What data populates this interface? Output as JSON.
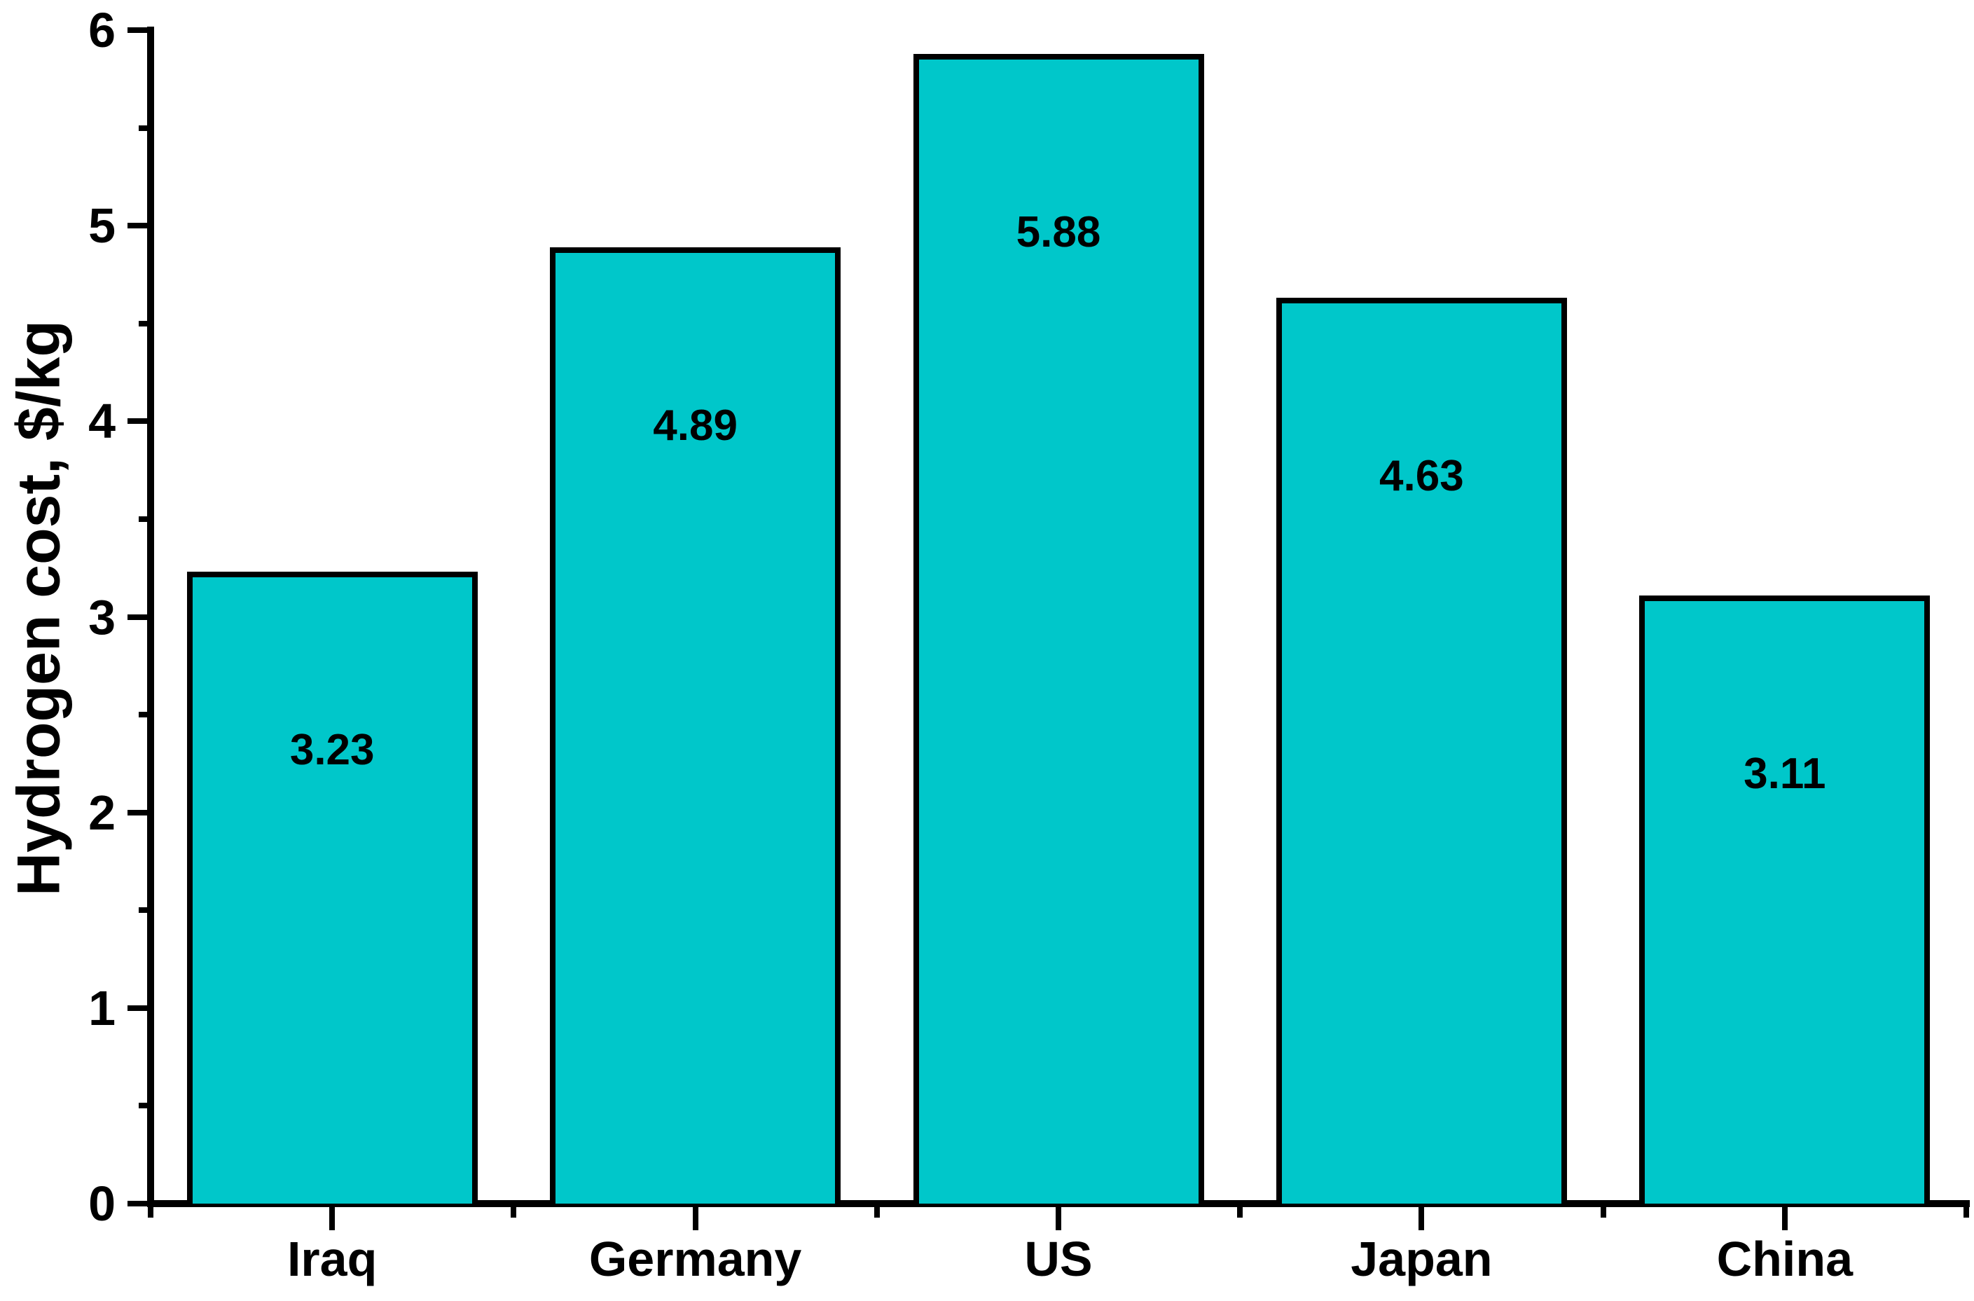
{
  "chart_data": {
    "type": "bar",
    "categories": [
      "Iraq",
      "Germany",
      "US",
      "Japan",
      "China"
    ],
    "values": [
      3.23,
      4.89,
      5.88,
      4.63,
      3.11
    ],
    "value_labels": [
      "3.23",
      "4.89",
      "5.88",
      "4.63",
      "3.11"
    ],
    "title": "",
    "xlabel": "",
    "ylabel": "Hydrogen cost, $/kg",
    "ylim": [
      0,
      6
    ],
    "y_major_ticks": [
      0,
      1,
      2,
      3,
      4,
      5,
      6
    ],
    "y_major_tick_labels": [
      "0",
      "1",
      "2",
      "3",
      "4",
      "5",
      "6"
    ],
    "y_minor_ticks": [
      0.5,
      1.5,
      2.5,
      3.5,
      4.5,
      5.5
    ],
    "grid": false,
    "legend_position": "none",
    "colors": {
      "bar_fill": "#00C7CA",
      "bar_border": "#000000",
      "axis": "#000000",
      "text": "#000000",
      "background": "#FFFFFF"
    }
  }
}
